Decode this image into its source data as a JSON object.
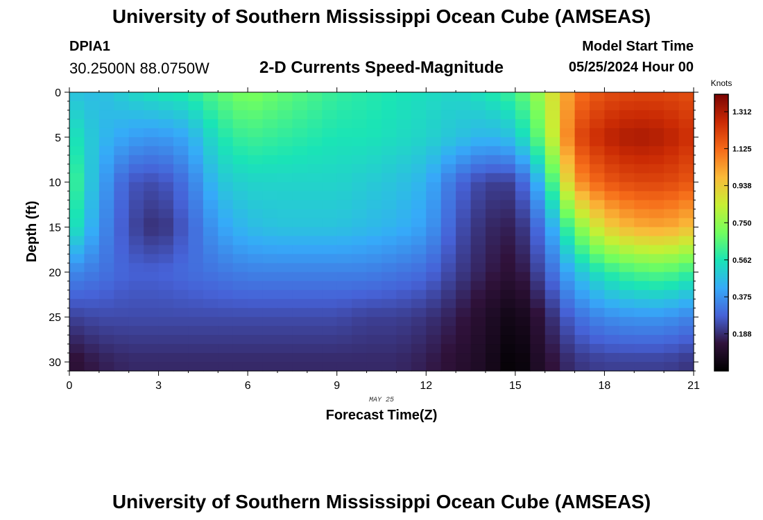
{
  "page": {
    "title": "University of Southern Mississippi Ocean Cube (AMSEAS)",
    "footer_title": "University of Southern Mississippi Ocean Cube (AMSEAS)",
    "station_id": "DPIA1",
    "station_coords": "30.2500N  88.0750W",
    "subtitle": "2-D Currents Speed-Magnitude",
    "model_start_label": "Model Start Time",
    "model_start_value": "05/25/2024 Hour 00"
  },
  "chart_data": {
    "type": "heatmap",
    "title": "2-D Currents Speed-Magnitude",
    "xlabel": "Forecast Time(Z)",
    "ylabel": "Depth (ft)",
    "x_ticks": [
      0,
      3,
      6,
      9,
      12,
      15,
      18,
      21
    ],
    "x_tick_labels": [
      "0",
      "3",
      "6",
      "9",
      "12",
      "15",
      "18",
      "21"
    ],
    "y_ticks": [
      0,
      5,
      10,
      15,
      20,
      25,
      30
    ],
    "y_tick_labels": [
      "0",
      "5",
      "10",
      "15",
      "20",
      "25",
      "30"
    ],
    "xlim": [
      0,
      21
    ],
    "ylim": [
      0,
      31
    ],
    "date_annotation": "MAY 25",
    "x_hours": [
      0,
      1,
      2,
      3,
      4,
      5,
      6,
      7,
      8,
      9,
      10,
      11,
      12,
      13,
      14,
      15,
      16,
      17,
      18,
      19,
      20,
      21
    ],
    "depths": [
      0,
      5,
      10,
      15,
      20,
      25,
      30
    ],
    "values": [
      [
        0.48,
        0.46,
        0.52,
        0.56,
        0.58,
        0.66,
        0.72,
        0.68,
        0.64,
        0.6,
        0.58,
        0.56,
        0.54,
        0.52,
        0.56,
        0.62,
        0.8,
        1.1,
        1.18,
        1.2,
        1.2,
        1.18
      ],
      [
        0.58,
        0.46,
        0.4,
        0.38,
        0.42,
        0.56,
        0.62,
        0.6,
        0.58,
        0.56,
        0.56,
        0.54,
        0.52,
        0.48,
        0.44,
        0.48,
        0.72,
        1.18,
        1.28,
        1.32,
        1.3,
        1.24
      ],
      [
        0.66,
        0.42,
        0.26,
        0.24,
        0.32,
        0.48,
        0.52,
        0.52,
        0.52,
        0.52,
        0.5,
        0.48,
        0.44,
        0.3,
        0.22,
        0.22,
        0.5,
        1.04,
        1.16,
        1.2,
        1.2,
        1.16
      ],
      [
        0.6,
        0.38,
        0.24,
        0.18,
        0.28,
        0.4,
        0.46,
        0.48,
        0.48,
        0.48,
        0.46,
        0.44,
        0.4,
        0.26,
        0.18,
        0.16,
        0.34,
        0.7,
        0.92,
        1.0,
        1.02,
        0.96
      ],
      [
        0.36,
        0.32,
        0.28,
        0.28,
        0.3,
        0.32,
        0.34,
        0.34,
        0.34,
        0.34,
        0.34,
        0.32,
        0.3,
        0.22,
        0.16,
        0.12,
        0.26,
        0.46,
        0.58,
        0.64,
        0.66,
        0.6
      ],
      [
        0.22,
        0.24,
        0.24,
        0.24,
        0.24,
        0.24,
        0.24,
        0.24,
        0.24,
        0.24,
        0.22,
        0.22,
        0.2,
        0.16,
        0.1,
        0.04,
        0.16,
        0.3,
        0.36,
        0.38,
        0.38,
        0.34
      ],
      [
        0.12,
        0.16,
        0.18,
        0.18,
        0.18,
        0.18,
        0.18,
        0.18,
        0.18,
        0.18,
        0.18,
        0.18,
        0.16,
        0.12,
        0.08,
        0.0,
        0.12,
        0.2,
        0.22,
        0.22,
        0.22,
        0.2
      ]
    ],
    "colorbar": {
      "title": "Knots",
      "min": 0.0,
      "max": 1.4,
      "ticks": [
        0.188,
        0.375,
        0.562,
        0.75,
        0.938,
        1.125,
        1.312
      ],
      "tick_labels": [
        "0.188",
        "0.375",
        "0.562",
        "0.750",
        "0.938",
        "1.125",
        "1.312"
      ],
      "colors": [
        "#000000",
        "#30123b",
        "#4662d7",
        "#36aaf9",
        "#1ae4b6",
        "#72fe5e",
        "#c7ef34",
        "#faba39",
        "#f66b19",
        "#ca2a04",
        "#7a0403"
      ]
    }
  }
}
